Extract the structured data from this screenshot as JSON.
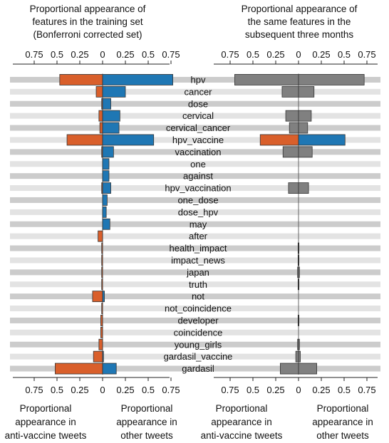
{
  "chart_data": [
    {
      "type": "bar",
      "orientation": "horizontal-diverging",
      "title": "Proportional appearance of features in the training set (Bonferroni corrected set)",
      "title_lines": [
        "Proportional appearance of",
        "features in the training set",
        "(Bonferroni corrected set)"
      ],
      "xlim": [
        -0.9,
        0.85
      ],
      "ticks": [
        -0.75,
        -0.5,
        -0.25,
        0,
        0.25,
        0.5,
        0.75
      ],
      "tick_labels": [
        "0.75",
        "0.5",
        "0.25",
        "0",
        "0.25",
        "0.5",
        "0.75"
      ],
      "bottom_ticks": [
        -0.75,
        -0.5,
        -0.25,
        0,
        0.25,
        0.5,
        0.75
      ],
      "bottom_tick_labels": [
        "0.75",
        "0.5",
        "0.25",
        "0",
        "0.25",
        "0.5",
        "0.75"
      ],
      "left_label_lines": [
        "Proportional",
        "appearance in",
        "anti-vaccine tweets"
      ],
      "right_label_lines": [
        "Proportional",
        "appearance in",
        "other tweets"
      ],
      "categories": [
        "hpv",
        "cancer",
        "dose",
        "cervical",
        "cervical_cancer",
        "hpv_vaccine",
        "vaccination",
        "one",
        "against",
        "hpv_vaccination",
        "one_dose",
        "dose_hpv",
        "may",
        "after",
        "health_impact",
        "impact_news",
        "japan",
        "truth",
        "not",
        "not_coincidence",
        "developer",
        "coincidence",
        "young_girls",
        "gardasil_vaccine",
        "gardasil"
      ],
      "series": [
        {
          "color": "#d95f2b",
          "values": [
            0.47,
            0.07,
            0.01,
            0.04,
            0.03,
            0.39,
            0.01,
            0.0,
            0.0,
            0.01,
            0.0,
            0.0,
            0.0,
            0.05,
            0.01,
            0.01,
            0.01,
            0.01,
            0.11,
            0.01,
            0.02,
            0.02,
            0.04,
            0.1,
            0.52
          ]
        },
        {
          "color": "#1f77b4",
          "values": [
            0.77,
            0.25,
            0.09,
            0.19,
            0.18,
            0.56,
            0.12,
            0.07,
            0.07,
            0.09,
            0.05,
            0.04,
            0.08,
            0.0,
            0.0,
            0.0,
            0.0,
            0.0,
            0.02,
            0.0,
            0.0,
            0.0,
            0.0,
            0.01,
            0.15
          ]
        }
      ]
    },
    {
      "type": "bar",
      "orientation": "horizontal-diverging",
      "title": "Proportional appearance of the same features in the subsequent three months",
      "title_lines": [
        "Proportional appearance of",
        "the same features in the",
        "subsequent three months"
      ],
      "xlim": [
        -0.9,
        0.85
      ],
      "ticks": [
        -0.75,
        -0.5,
        -0.25,
        0,
        0.25,
        0.5,
        0.75
      ],
      "tick_labels": [
        "0.75",
        "0.5",
        "0.25",
        "0",
        "0.25",
        "0.5",
        "0.75"
      ],
      "bottom_ticks": [
        -0.75,
        -0.5,
        -0.25,
        0,
        0.25,
        0.5,
        0.75
      ],
      "bottom_tick_labels": [
        "0.75",
        "0.5",
        "0.25",
        "0",
        "0.25",
        "0.5",
        "0.75"
      ],
      "left_label_lines": [
        "Proportional",
        "appearance in",
        "anti-vaccine tweets"
      ],
      "right_label_lines": [
        "Proportional",
        "appearance in",
        "other tweets"
      ],
      "categories": [
        "hpv",
        "cancer",
        "dose",
        "cervical",
        "cervical_cancer",
        "hpv_vaccine",
        "vaccination",
        "one",
        "against",
        "hpv_vaccination",
        "one_dose",
        "dose_hpv",
        "may",
        "after",
        "health_impact",
        "impact_news",
        "japan",
        "truth",
        "not",
        "not_coincidence",
        "developer",
        "coincidence",
        "young_girls",
        "gardasil_vaccine",
        "gardasil"
      ],
      "series": [
        {
          "color": "#808080",
          "values": [
            0.7,
            0.18,
            0.0,
            0.14,
            0.1,
            0.42,
            0.17,
            0.0,
            0.0,
            0.11,
            0.0,
            0.0,
            0.0,
            0.0,
            0.005,
            0.005,
            0.01,
            0.005,
            0.0,
            0.0,
            0.005,
            0.0,
            0.01,
            0.03,
            0.2
          ]
        },
        {
          "color": "#808080",
          "values": [
            0.72,
            0.17,
            0.0,
            0.14,
            0.1,
            0.51,
            0.15,
            0.0,
            0.0,
            0.11,
            0.0,
            0.0,
            0.0,
            0.0,
            0.005,
            0.005,
            0.01,
            0.005,
            0.0,
            0.0,
            0.005,
            0.0,
            0.01,
            0.02,
            0.2
          ]
        }
      ],
      "highlight_category": "hpv_vaccine",
      "highlight_colors": [
        "#d95f2b",
        "#1f77b4"
      ]
    }
  ],
  "colors": {
    "anti": "#d95f2b",
    "other": "#1f77b4",
    "grey": "#808080",
    "stripe_dark": "#cccccc",
    "stripe_light": "#e3e3e3"
  }
}
